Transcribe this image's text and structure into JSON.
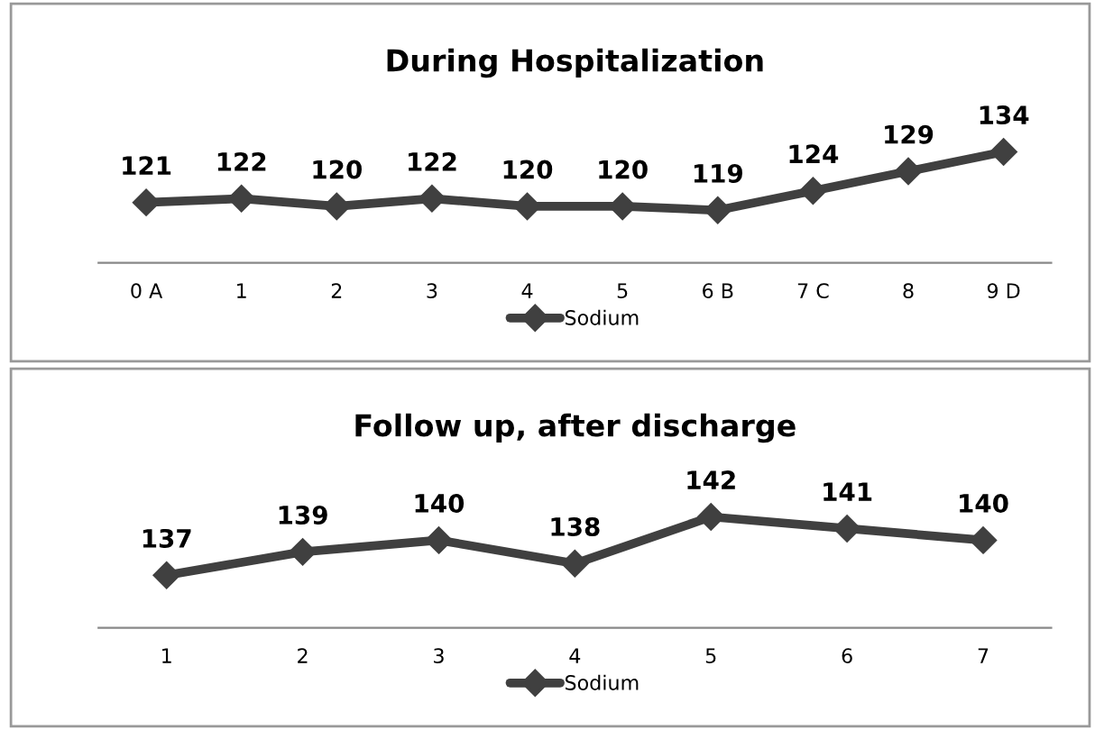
{
  "chart_data": [
    {
      "type": "line",
      "title": "During Hospitalization",
      "categories": [
        "0 A",
        "1",
        "2",
        "3",
        "4",
        "5",
        "6 B",
        "7 C",
        "8",
        "9 D"
      ],
      "series": [
        {
          "name": "Sodium",
          "color": "#404040",
          "values": [
            121,
            122,
            120,
            122,
            120,
            120,
            119,
            124,
            129,
            134
          ]
        }
      ],
      "data_labels": true,
      "marker": "diamond",
      "line_style": "solid",
      "legend": "bottom",
      "grid": false,
      "tick_labels": "x"
    },
    {
      "type": "line",
      "title": "Follow up, after discharge",
      "categories": [
        "1",
        "2",
        "3",
        "4",
        "5",
        "6",
        "7"
      ],
      "series": [
        {
          "name": "Sodium",
          "color": "#404040",
          "values": [
            137,
            139,
            140,
            138,
            142,
            141,
            140
          ]
        }
      ],
      "data_labels": true,
      "marker": "diamond",
      "line_style": "solid",
      "legend": "bottom",
      "grid": false,
      "tick_labels": "x"
    }
  ]
}
